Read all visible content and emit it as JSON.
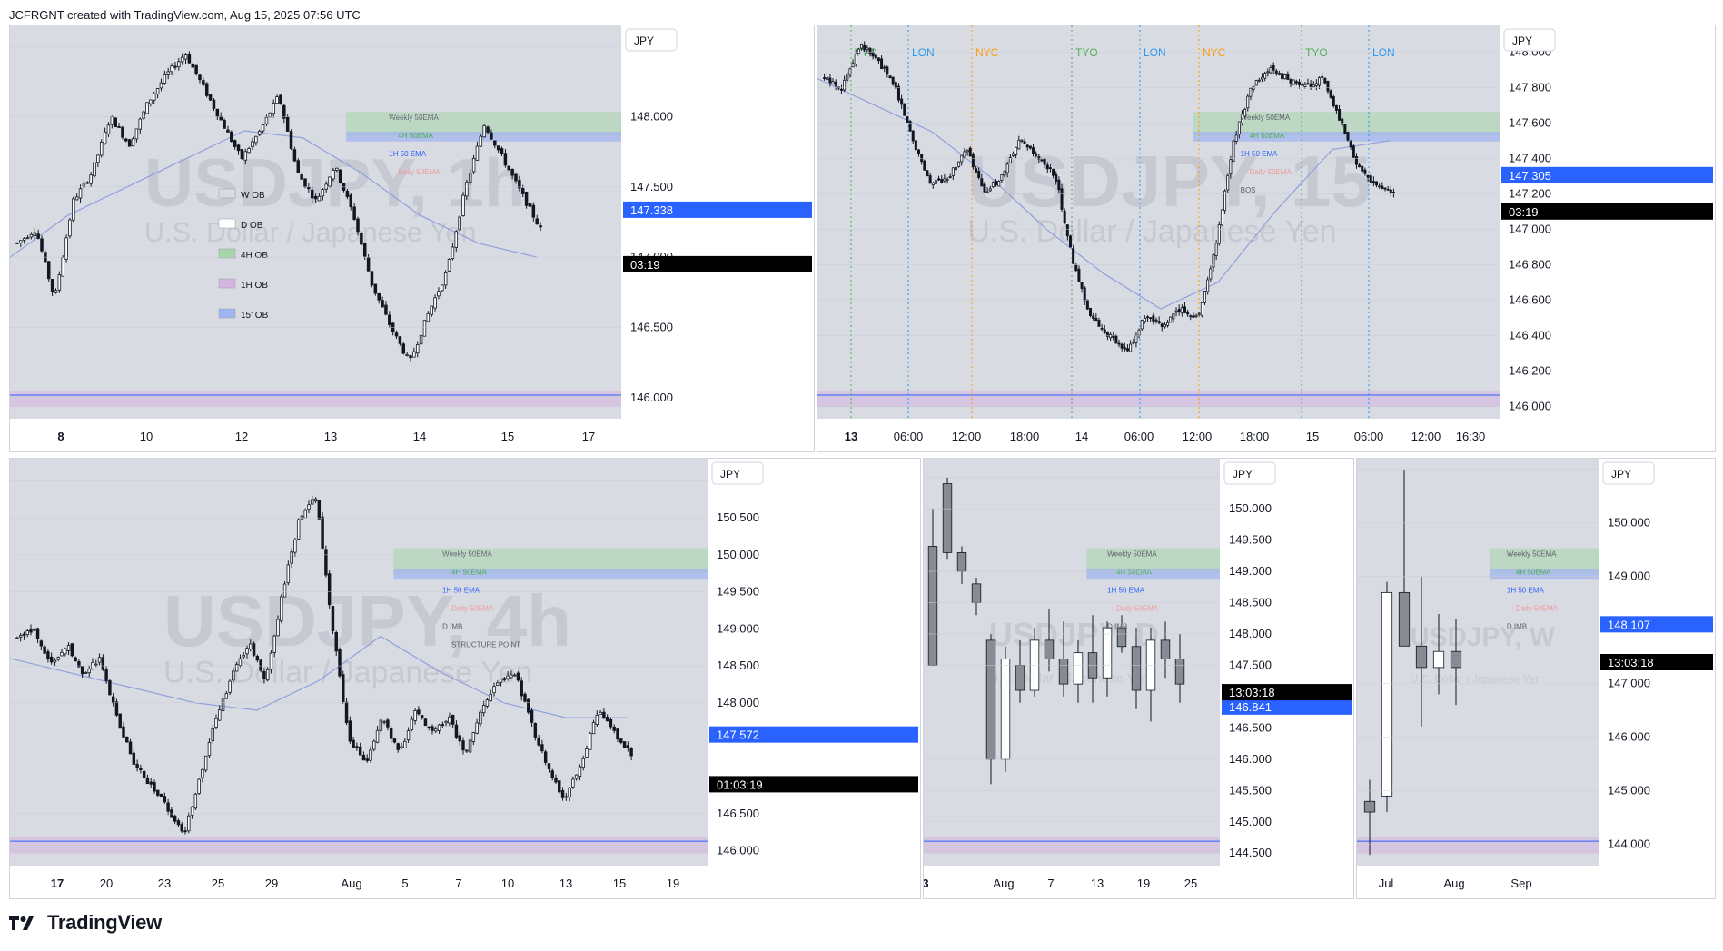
{
  "header": {
    "credit": "JCFRGNT created with TradingView.com, Aug 15, 2025 07:56 UTC"
  },
  "footer": {
    "brand": "TradingView"
  },
  "colors": {
    "bg": "#ffffff",
    "plot_bg": "#d8dbe2",
    "grid": "#c9ccd4",
    "axis_text": "#131722",
    "candle": "#131722",
    "ema_1h": "#8fa0dc",
    "ob_green": "#a5d6a7",
    "ob_purple": "#d4b5e0",
    "ob_blue": "#9fb4f0",
    "ob_grey": "#b0b3bb",
    "daily_ema": "#ef9a9a",
    "accent_blue": "#2962ff",
    "label_black": "#000000",
    "tyo": "#4caf50",
    "lon": "#2196f3",
    "nyc": "#ff9800"
  },
  "chart_data": [
    {
      "id": "p1",
      "type": "candlestick",
      "watermark": {
        "symbol": "USDJPY, 1h",
        "name": "U.S. Dollar / Japanese Yen"
      },
      "currency": "JPY",
      "y_ticks": [
        "148.500",
        "148.000",
        "147.500",
        "147.000",
        "146.500",
        "146.000"
      ],
      "ylim": [
        145.85,
        148.65
      ],
      "x_ticks": [
        "8",
        "10",
        "12",
        "13",
        "14",
        "15",
        "17"
      ],
      "price_label": "147.338",
      "countdown_label": "03:19",
      "legend": [
        "W OB",
        "D OB",
        "4H OB",
        "1H OB",
        "15' OB"
      ],
      "annotations": [
        "Weekly 50EMA",
        "4H 50EMA",
        "1H 50 EMA",
        "Daily 50EMA"
      ],
      "key_path": [
        147.1,
        147.2,
        146.7,
        147.4,
        147.6,
        148.0,
        147.8,
        148.1,
        148.3,
        148.45,
        148.2,
        147.95,
        147.7,
        147.9,
        148.15,
        147.6,
        147.4,
        147.65,
        147.3,
        146.8,
        146.5,
        146.25,
        146.6,
        146.9,
        147.5,
        147.95,
        147.7,
        147.45,
        147.2
      ]
    },
    {
      "id": "p2",
      "type": "candlestick",
      "watermark": {
        "symbol": "USDJPY, 15",
        "name": "U.S. Dollar / Japanese Yen"
      },
      "currency": "JPY",
      "y_ticks": [
        "148.000",
        "147.800",
        "147.600",
        "147.400",
        "147.200",
        "147.000",
        "146.800",
        "146.600",
        "146.400",
        "146.200",
        "146.000"
      ],
      "ylim": [
        145.93,
        148.15
      ],
      "x_ticks": [
        "13",
        "06:00",
        "12:00",
        "18:00",
        "14",
        "06:00",
        "12:00",
        "18:00",
        "15",
        "06:00",
        "12:00",
        "16:30"
      ],
      "price_label": "147.305",
      "countdown_label": "03:19",
      "sessions": [
        "TYO",
        "LON",
        "NYC",
        "TYO",
        "LON",
        "NYC",
        "TYO",
        "LON"
      ],
      "annotations": [
        "Weekly 50EMA",
        "4H 50EMA",
        "1H 50 EMA",
        "Daily 50EMA",
        "BOS"
      ],
      "key_path": [
        147.85,
        147.8,
        148.05,
        147.95,
        147.8,
        147.5,
        147.25,
        147.3,
        147.45,
        147.2,
        147.3,
        147.5,
        147.4,
        147.3,
        146.8,
        146.5,
        146.4,
        146.3,
        146.5,
        146.45,
        146.55,
        146.5,
        146.9,
        147.5,
        147.8,
        147.9,
        147.85,
        147.8,
        147.85,
        147.6,
        147.35,
        147.25,
        147.2
      ]
    },
    {
      "id": "p3",
      "type": "candlestick",
      "watermark": {
        "symbol": "USDJPY, 4h",
        "name": "U.S. Dollar / Japanese Yen"
      },
      "currency": "JPY",
      "y_ticks": [
        "151.000",
        "150.500",
        "150.000",
        "149.500",
        "149.000",
        "148.500",
        "148.000",
        "146.500",
        "146.000"
      ],
      "ylim": [
        145.8,
        151.3
      ],
      "x_ticks": [
        "17",
        "20",
        "23",
        "25",
        "29",
        "Aug",
        "5",
        "7",
        "10",
        "13",
        "15",
        "19"
      ],
      "price_label": "147.572",
      "countdown_label": "01:03:19",
      "annotations": [
        "Weekly 50EMA",
        "4H 50EMA",
        "1H 50 EMA",
        "Daily 50EMA",
        "D IMB",
        "STRUCTURE POINT"
      ],
      "key_path": [
        148.9,
        149.0,
        148.5,
        148.8,
        148.4,
        148.6,
        147.8,
        147.2,
        146.9,
        146.6,
        146.2,
        147.0,
        147.8,
        148.4,
        148.8,
        148.3,
        149.5,
        150.5,
        150.8,
        149.0,
        147.5,
        147.2,
        147.8,
        147.3,
        147.9,
        147.6,
        147.8,
        147.3,
        147.9,
        148.3,
        148.4,
        147.7,
        147.1,
        146.7,
        147.2,
        147.9,
        147.6,
        147.3
      ]
    },
    {
      "id": "p4",
      "type": "candlestick",
      "watermark": {
        "symbol": "USDJPY, D",
        "name": "U.S. Dollar / Japanese Yen"
      },
      "currency": "JPY",
      "y_ticks": [
        "150.500",
        "150.000",
        "149.500",
        "149.000",
        "148.500",
        "148.000",
        "147.500",
        "146.500",
        "146.000",
        "145.500",
        "145.000",
        "144.500"
      ],
      "ylim": [
        144.3,
        150.8
      ],
      "x_ticks": [
        "3",
        "Aug",
        "7",
        "13",
        "19",
        "25"
      ],
      "price_label": "146.841",
      "countdown_label": "13:03:18",
      "annotations": [
        "Weekly 50EMA",
        "4H 50EMA",
        "1H 50 EMA",
        "Daily 50EMA",
        "D IMB"
      ]
    },
    {
      "id": "p5",
      "type": "candlestick",
      "watermark": {
        "symbol": "USDJPY, W",
        "name": "U.S. Dollar / Japanese Yen"
      },
      "currency": "JPY",
      "y_ticks": [
        "151.000",
        "150.000",
        "149.000",
        "147.000",
        "146.000",
        "145.000",
        "144.000"
      ],
      "ylim": [
        143.6,
        151.2
      ],
      "x_ticks": [
        "Jul",
        "Aug",
        "Sep"
      ],
      "price_label": "148.107",
      "countdown_label": "13:03:18",
      "annotations": [
        "Weekly 50EMA",
        "4H 50EMA",
        "1H 50 EMA",
        "Daily 50EMA",
        "D IMB"
      ]
    }
  ]
}
